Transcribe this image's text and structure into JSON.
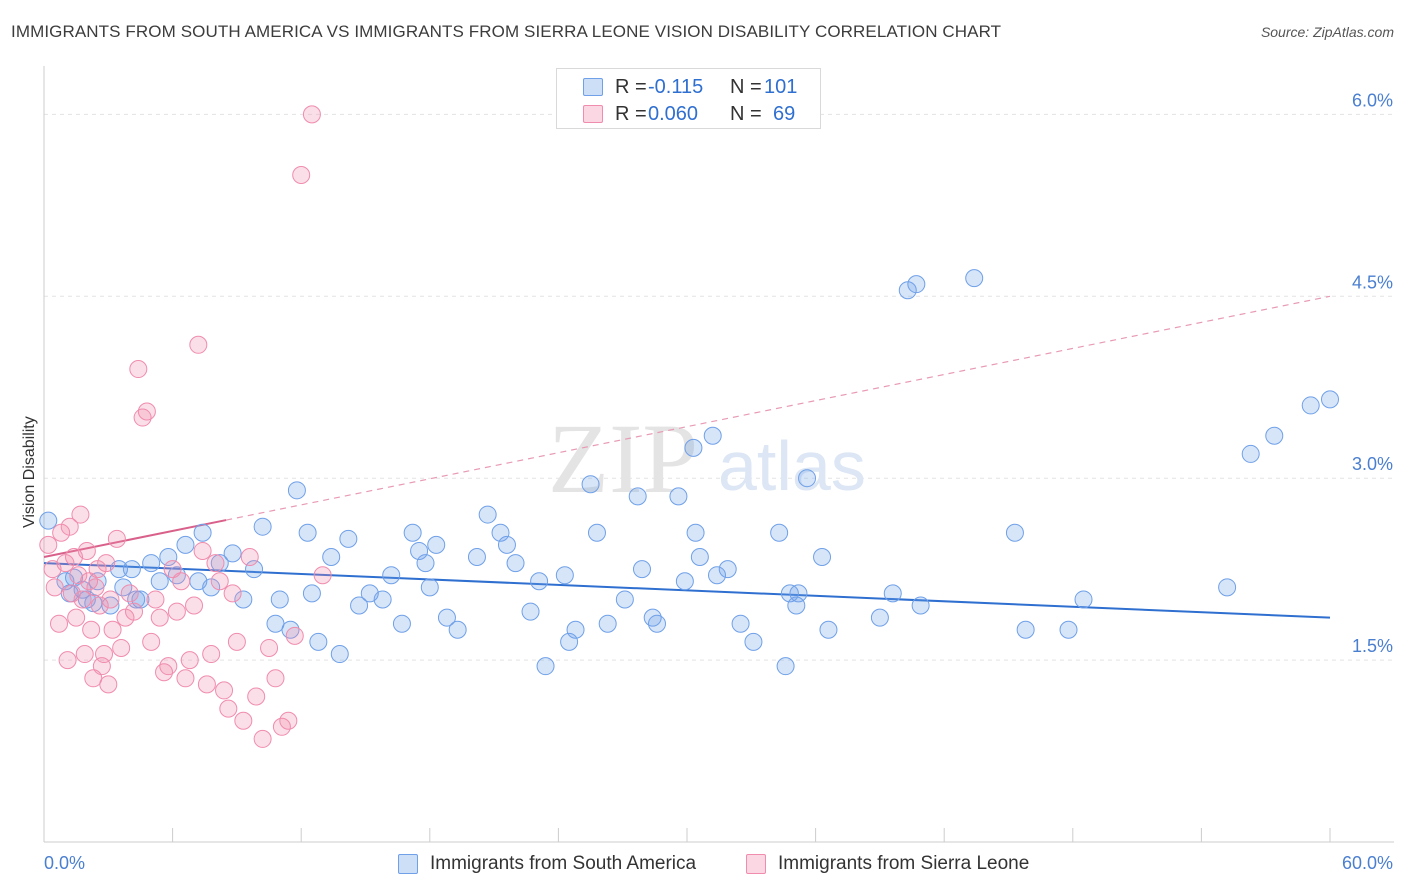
{
  "title": "IMMIGRANTS FROM SOUTH AMERICA VS IMMIGRANTS FROM SIERRA LEONE VISION DISABILITY CORRELATION CHART",
  "source": "Source: ZipAtlas.com",
  "watermark": {
    "zip": "ZIP",
    "atlas": "atlas"
  },
  "legend": {
    "rows": [
      {
        "r_label": "R =",
        "r_value": "-0.115",
        "n_label": "N =",
        "n_value": "101",
        "color": "#6fa0e8"
      },
      {
        "r_label": "R =",
        "r_value": "0.060",
        "n_label": "N =",
        "n_value": "69",
        "color": "#f08cad"
      }
    ]
  },
  "bottom_legend": [
    {
      "label": "Immigrants from South America",
      "color": "#6fa0e8"
    },
    {
      "label": "Immigrants from Sierra Leone",
      "color": "#f08cad"
    }
  ],
  "chart_data": {
    "type": "scatter",
    "title": "IMMIGRANTS FROM SOUTH AMERICA VS IMMIGRANTS FROM SIERRA LEONE VISION DISABILITY CORRELATION CHART",
    "xlabel": "",
    "ylabel": "Vision Disability",
    "xlim": [
      0,
      60
    ],
    "ylim": [
      0,
      6.3
    ],
    "x_tick_labels": [
      {
        "value": 0,
        "label": "0.0%"
      },
      {
        "value": 60,
        "label": "60.0%"
      }
    ],
    "y_ticks": [
      {
        "value": 1.5,
        "label": "1.5%"
      },
      {
        "value": 3.0,
        "label": "3.0%"
      },
      {
        "value": 4.5,
        "label": "4.5%"
      },
      {
        "value": 6.0,
        "label": "6.0%"
      }
    ],
    "x_minor_ticks": [
      0,
      6,
      12,
      18,
      24,
      30,
      36,
      42,
      48,
      54,
      60
    ],
    "grid": true,
    "series": [
      {
        "name": "Immigrants from South America",
        "color": "#6fa0e8",
        "trend": {
          "x": [
            0,
            60
          ],
          "y": [
            2.3,
            1.85
          ],
          "style": "solid"
        },
        "points": [
          [
            0.2,
            2.65
          ],
          [
            1.0,
            2.15
          ],
          [
            1.2,
            2.05
          ],
          [
            1.4,
            2.18
          ],
          [
            1.8,
            2.08
          ],
          [
            2.0,
            2.0
          ],
          [
            2.3,
            1.97
          ],
          [
            2.5,
            2.15
          ],
          [
            3.1,
            1.95
          ],
          [
            3.5,
            2.25
          ],
          [
            3.7,
            2.1
          ],
          [
            4.1,
            2.25
          ],
          [
            4.3,
            2.0
          ],
          [
            4.5,
            2.0
          ],
          [
            5.0,
            2.3
          ],
          [
            5.4,
            2.15
          ],
          [
            5.8,
            2.35
          ],
          [
            6.2,
            2.2
          ],
          [
            6.6,
            2.45
          ],
          [
            7.2,
            2.15
          ],
          [
            7.4,
            2.55
          ],
          [
            7.8,
            2.1
          ],
          [
            8.2,
            2.3
          ],
          [
            8.8,
            2.38
          ],
          [
            9.3,
            2.0
          ],
          [
            9.8,
            2.25
          ],
          [
            10.2,
            2.6
          ],
          [
            10.8,
            1.8
          ],
          [
            11.0,
            2.0
          ],
          [
            11.5,
            1.75
          ],
          [
            11.8,
            2.9
          ],
          [
            12.3,
            2.55
          ],
          [
            12.5,
            2.05
          ],
          [
            12.8,
            1.65
          ],
          [
            13.4,
            2.35
          ],
          [
            13.8,
            1.55
          ],
          [
            14.2,
            2.5
          ],
          [
            14.7,
            1.95
          ],
          [
            15.2,
            2.05
          ],
          [
            15.8,
            2.0
          ],
          [
            16.2,
            2.2
          ],
          [
            16.7,
            1.8
          ],
          [
            17.2,
            2.55
          ],
          [
            17.5,
            2.4
          ],
          [
            17.8,
            2.3
          ],
          [
            18.0,
            2.1
          ],
          [
            18.3,
            2.45
          ],
          [
            18.8,
            1.85
          ],
          [
            19.3,
            1.75
          ],
          [
            20.2,
            2.35
          ],
          [
            20.7,
            2.7
          ],
          [
            21.3,
            2.55
          ],
          [
            21.6,
            2.45
          ],
          [
            22.0,
            2.3
          ],
          [
            22.7,
            1.9
          ],
          [
            23.1,
            2.15
          ],
          [
            23.4,
            1.45
          ],
          [
            24.3,
            2.2
          ],
          [
            24.5,
            1.65
          ],
          [
            24.8,
            1.75
          ],
          [
            25.5,
            2.95
          ],
          [
            25.8,
            2.55
          ],
          [
            26.3,
            1.8
          ],
          [
            27.1,
            2.0
          ],
          [
            27.7,
            2.85
          ],
          [
            27.9,
            2.25
          ],
          [
            28.4,
            1.85
          ],
          [
            28.6,
            1.8
          ],
          [
            29.6,
            2.85
          ],
          [
            29.9,
            2.15
          ],
          [
            30.3,
            3.25
          ],
          [
            30.4,
            2.55
          ],
          [
            30.6,
            2.35
          ],
          [
            31.2,
            3.35
          ],
          [
            31.4,
            2.2
          ],
          [
            31.9,
            2.25
          ],
          [
            32.5,
            1.8
          ],
          [
            33.1,
            1.65
          ],
          [
            34.3,
            2.55
          ],
          [
            34.6,
            1.45
          ],
          [
            34.8,
            2.05
          ],
          [
            35.1,
            1.95
          ],
          [
            35.2,
            2.05
          ],
          [
            35.6,
            3.0
          ],
          [
            36.3,
            2.35
          ],
          [
            36.6,
            1.75
          ],
          [
            39.0,
            1.85
          ],
          [
            39.6,
            2.05
          ],
          [
            40.3,
            4.55
          ],
          [
            40.7,
            4.6
          ],
          [
            40.9,
            1.95
          ],
          [
            43.4,
            4.65
          ],
          [
            45.3,
            2.55
          ],
          [
            45.8,
            1.75
          ],
          [
            47.8,
            1.75
          ],
          [
            48.5,
            2.0
          ],
          [
            55.2,
            2.1
          ],
          [
            56.3,
            3.2
          ],
          [
            57.4,
            3.35
          ],
          [
            59.1,
            3.6
          ],
          [
            60.0,
            3.65
          ]
        ]
      },
      {
        "name": "Immigrants from Sierra Leone",
        "color": "#f08cad",
        "trend": {
          "x": [
            0,
            60
          ],
          "y": [
            2.35,
            4.5
          ],
          "style": "dashed",
          "solid_until": 8.5
        },
        "points": [
          [
            0.2,
            2.45
          ],
          [
            0.4,
            2.25
          ],
          [
            0.5,
            2.1
          ],
          [
            0.7,
            1.8
          ],
          [
            0.8,
            2.55
          ],
          [
            1.0,
            2.3
          ],
          [
            1.1,
            1.5
          ],
          [
            1.2,
            2.6
          ],
          [
            1.3,
            2.05
          ],
          [
            1.4,
            2.35
          ],
          [
            1.5,
            1.85
          ],
          [
            1.6,
            2.2
          ],
          [
            1.7,
            2.7
          ],
          [
            1.8,
            2.0
          ],
          [
            1.9,
            1.55
          ],
          [
            2.0,
            2.4
          ],
          [
            2.1,
            2.15
          ],
          [
            2.2,
            1.75
          ],
          [
            2.3,
            1.35
          ],
          [
            2.4,
            2.1
          ],
          [
            2.5,
            2.25
          ],
          [
            2.6,
            1.95
          ],
          [
            2.7,
            1.45
          ],
          [
            2.8,
            1.55
          ],
          [
            2.9,
            2.3
          ],
          [
            3.0,
            1.3
          ],
          [
            3.1,
            2.0
          ],
          [
            3.2,
            1.75
          ],
          [
            3.4,
            2.5
          ],
          [
            3.6,
            1.6
          ],
          [
            3.8,
            1.85
          ],
          [
            4.0,
            2.05
          ],
          [
            4.2,
            1.9
          ],
          [
            4.4,
            3.9
          ],
          [
            4.6,
            3.5
          ],
          [
            4.8,
            3.55
          ],
          [
            5.0,
            1.65
          ],
          [
            5.2,
            2.0
          ],
          [
            5.4,
            1.85
          ],
          [
            5.6,
            1.4
          ],
          [
            5.8,
            1.45
          ],
          [
            6.0,
            2.25
          ],
          [
            6.2,
            1.9
          ],
          [
            6.4,
            2.15
          ],
          [
            6.6,
            1.35
          ],
          [
            6.8,
            1.5
          ],
          [
            7.0,
            1.95
          ],
          [
            7.2,
            4.1
          ],
          [
            7.4,
            2.4
          ],
          [
            7.6,
            1.3
          ],
          [
            7.8,
            1.55
          ],
          [
            8.0,
            2.3
          ],
          [
            8.2,
            2.15
          ],
          [
            8.4,
            1.25
          ],
          [
            8.6,
            1.1
          ],
          [
            8.8,
            2.05
          ],
          [
            9.0,
            1.65
          ],
          [
            9.3,
            1.0
          ],
          [
            9.6,
            2.35
          ],
          [
            9.9,
            1.2
          ],
          [
            10.2,
            0.85
          ],
          [
            10.5,
            1.6
          ],
          [
            10.8,
            1.35
          ],
          [
            11.1,
            0.95
          ],
          [
            11.4,
            1.0
          ],
          [
            11.7,
            1.7
          ],
          [
            12.0,
            5.5
          ],
          [
            12.5,
            6.0
          ],
          [
            13.0,
            2.2
          ]
        ]
      }
    ]
  }
}
